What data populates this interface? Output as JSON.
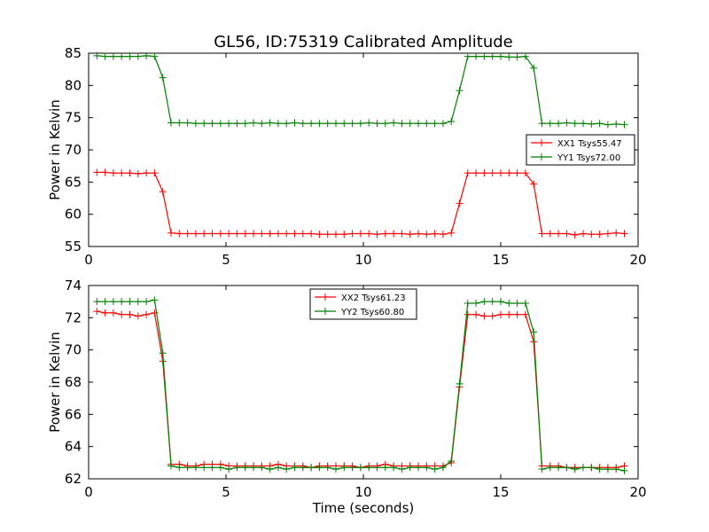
{
  "chart_data": [
    {
      "type": "line",
      "title": "GL56, ID:75319 Calibrated Amplitude",
      "xlabel": "",
      "ylabel": "Power in Kelvin",
      "xlim": [
        0,
        20
      ],
      "ylim": [
        55,
        85
      ],
      "xticks": [
        "0",
        "5",
        "10",
        "15",
        "20"
      ],
      "yticks": [
        "55",
        "60",
        "65",
        "70",
        "75",
        "80",
        "85"
      ],
      "legend_position": "center-right",
      "grid": false,
      "x": [
        0.3,
        0.6,
        0.9,
        1.2,
        1.5,
        1.8,
        2.1,
        2.4,
        2.7,
        3.0,
        3.3,
        3.6,
        3.9,
        4.2,
        4.5,
        4.8,
        5.1,
        5.4,
        5.7,
        6.0,
        6.3,
        6.6,
        6.9,
        7.2,
        7.5,
        7.8,
        8.1,
        8.4,
        8.7,
        9.0,
        9.3,
        9.6,
        9.9,
        10.2,
        10.5,
        10.8,
        11.1,
        11.4,
        11.7,
        12.0,
        12.3,
        12.6,
        12.9,
        13.2,
        13.5,
        13.8,
        14.1,
        14.4,
        14.7,
        15.0,
        15.3,
        15.6,
        15.9,
        16.2,
        16.5,
        16.8,
        17.1,
        17.4,
        17.7,
        18.0,
        18.3,
        18.6,
        18.9,
        19.2,
        19.5
      ],
      "series": [
        {
          "name": "XX1 Tsys55.47",
          "color": "#ff0000",
          "values": [
            66.5,
            66.5,
            66.4,
            66.4,
            66.4,
            66.3,
            66.4,
            66.4,
            63.5,
            57.1,
            57.0,
            57.0,
            57.0,
            57.0,
            57.0,
            57.0,
            57.0,
            57.0,
            57.0,
            57.0,
            57.0,
            57.0,
            57.0,
            57.0,
            57.0,
            57.0,
            57.0,
            56.9,
            56.9,
            56.9,
            56.9,
            57.0,
            57.0,
            57.0,
            56.9,
            57.0,
            57.0,
            57.0,
            56.9,
            57.0,
            56.9,
            57.0,
            56.9,
            57.1,
            61.7,
            66.4,
            66.4,
            66.4,
            66.4,
            66.4,
            66.4,
            66.4,
            66.4,
            64.7,
            57.0,
            57.0,
            57.0,
            57.0,
            56.8,
            57.0,
            56.9,
            56.9,
            57.0,
            57.1,
            57.0
          ]
        },
        {
          "name": "YY1 Tsys72.00",
          "color": "#007f00",
          "values": [
            84.6,
            84.5,
            84.5,
            84.5,
            84.5,
            84.5,
            84.6,
            84.5,
            81.2,
            74.2,
            74.2,
            74.2,
            74.1,
            74.1,
            74.1,
            74.1,
            74.1,
            74.1,
            74.1,
            74.2,
            74.1,
            74.2,
            74.1,
            74.1,
            74.2,
            74.1,
            74.1,
            74.1,
            74.1,
            74.1,
            74.1,
            74.1,
            74.1,
            74.2,
            74.1,
            74.1,
            74.2,
            74.1,
            74.1,
            74.1,
            74.1,
            74.1,
            74.1,
            74.4,
            79.2,
            84.5,
            84.5,
            84.5,
            84.5,
            84.5,
            84.4,
            84.4,
            84.5,
            82.7,
            74.1,
            74.1,
            74.1,
            74.2,
            74.1,
            74.1,
            74.0,
            74.1,
            73.9,
            74.0,
            73.9
          ]
        }
      ]
    },
    {
      "type": "line",
      "title": "",
      "xlabel": "Time (seconds)",
      "ylabel": "Power in Kelvin",
      "xlim": [
        0,
        20
      ],
      "ylim": [
        62,
        74
      ],
      "xticks": [
        "0",
        "5",
        "10",
        "15",
        "20"
      ],
      "yticks": [
        "62",
        "64",
        "66",
        "68",
        "70",
        "72",
        "74"
      ],
      "legend_position": "top-center",
      "grid": false,
      "x": [
        0.3,
        0.6,
        0.9,
        1.2,
        1.5,
        1.8,
        2.1,
        2.4,
        2.7,
        3.0,
        3.3,
        3.6,
        3.9,
        4.2,
        4.5,
        4.8,
        5.1,
        5.4,
        5.7,
        6.0,
        6.3,
        6.6,
        6.9,
        7.2,
        7.5,
        7.8,
        8.1,
        8.4,
        8.7,
        9.0,
        9.3,
        9.6,
        9.9,
        10.2,
        10.5,
        10.8,
        11.1,
        11.4,
        11.7,
        12.0,
        12.3,
        12.6,
        12.9,
        13.2,
        13.5,
        13.8,
        14.1,
        14.4,
        14.7,
        15.0,
        15.3,
        15.6,
        15.9,
        16.2,
        16.5,
        16.8,
        17.1,
        17.4,
        17.7,
        18.0,
        18.3,
        18.6,
        18.9,
        19.2,
        19.5
      ],
      "series": [
        {
          "name": "XX2 Tsys61.23",
          "color": "#ff0000",
          "values": [
            72.4,
            72.3,
            72.3,
            72.2,
            72.2,
            72.1,
            72.2,
            72.3,
            69.3,
            62.9,
            62.9,
            62.8,
            62.8,
            62.9,
            62.9,
            62.9,
            62.8,
            62.8,
            62.8,
            62.8,
            62.8,
            62.8,
            62.9,
            62.8,
            62.8,
            62.8,
            62.7,
            62.8,
            62.8,
            62.8,
            62.8,
            62.8,
            62.7,
            62.8,
            62.8,
            62.9,
            62.8,
            62.8,
            62.8,
            62.8,
            62.8,
            62.8,
            62.8,
            63.0,
            67.7,
            72.2,
            72.2,
            72.1,
            72.1,
            72.2,
            72.2,
            72.2,
            72.2,
            70.5,
            62.8,
            62.8,
            62.8,
            62.7,
            62.7,
            62.7,
            62.7,
            62.7,
            62.7,
            62.7,
            62.8
          ]
        },
        {
          "name": "YY2 Tsys60.80",
          "color": "#007f00",
          "values": [
            73.0,
            73.0,
            73.0,
            73.0,
            73.0,
            73.0,
            73.0,
            73.1,
            69.8,
            62.8,
            62.7,
            62.7,
            62.7,
            62.7,
            62.7,
            62.7,
            62.6,
            62.7,
            62.7,
            62.7,
            62.7,
            62.6,
            62.7,
            62.6,
            62.7,
            62.7,
            62.7,
            62.7,
            62.7,
            62.6,
            62.7,
            62.7,
            62.7,
            62.7,
            62.7,
            62.7,
            62.7,
            62.6,
            62.7,
            62.7,
            62.7,
            62.6,
            62.7,
            63.1,
            67.9,
            72.9,
            72.9,
            73.0,
            73.0,
            73.0,
            72.9,
            72.9,
            72.9,
            71.1,
            62.6,
            62.7,
            62.7,
            62.7,
            62.6,
            62.7,
            62.7,
            62.6,
            62.6,
            62.6,
            62.5
          ]
        }
      ]
    }
  ]
}
